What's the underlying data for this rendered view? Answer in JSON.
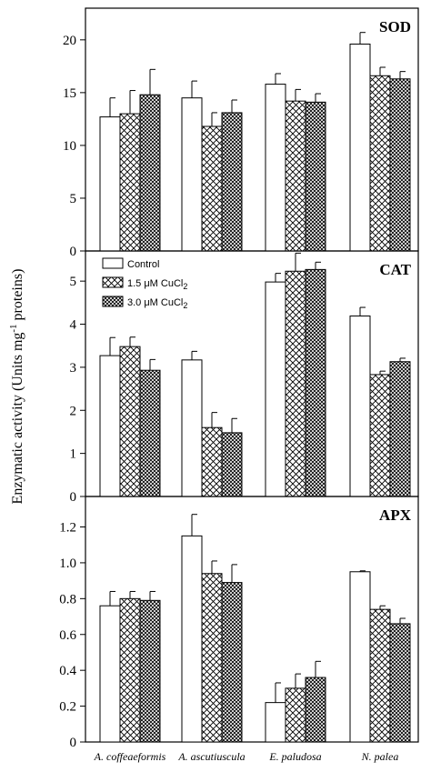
{
  "chart_data": {
    "type": "bar",
    "ylabel_main": "Enzymatic activity (Units mg",
    "ylabel_sup": "-1",
    "ylabel_end": " proteins)",
    "categories": [
      "A. coffeaeformis",
      "A. ascutiuscula",
      "E. paludosa",
      "N. palea"
    ],
    "legend": [
      {
        "name": "Control",
        "pattern": "plain"
      },
      {
        "name": "1.5 μM CuCl",
        "sub": "2",
        "pattern": "cross"
      },
      {
        "name": "3.0 μM CuCl",
        "sub": "2",
        "pattern": "dense"
      }
    ],
    "legend_panel": 1,
    "legend_position": "top-left",
    "panels": [
      {
        "title": "SOD",
        "ylim": [
          0,
          23
        ],
        "yticks": [
          0,
          5,
          10,
          15,
          20
        ],
        "tick_labels": [
          "0",
          "5",
          "10",
          "15",
          "20"
        ],
        "series": [
          {
            "values": [
              12.7,
              14.5,
              15.8,
              19.6
            ],
            "errors": [
              1.8,
              1.6,
              1.0,
              1.1
            ]
          },
          {
            "values": [
              13.0,
              11.8,
              14.2,
              16.6
            ],
            "errors": [
              2.2,
              1.3,
              1.1,
              0.8
            ]
          },
          {
            "values": [
              14.8,
              13.1,
              14.1,
              16.3
            ],
            "errors": [
              2.4,
              1.2,
              0.8,
              0.7
            ]
          }
        ]
      },
      {
        "title": "CAT",
        "ylim": [
          0,
          5.7
        ],
        "yticks": [
          0,
          1,
          2,
          3,
          4,
          5
        ],
        "tick_labels": [
          "0",
          "1",
          "2",
          "3",
          "4",
          "5"
        ],
        "series": [
          {
            "values": [
              3.27,
              3.17,
              4.98,
              4.19
            ],
            "errors": [
              0.42,
              0.2,
              0.2,
              0.2
            ]
          },
          {
            "values": [
              3.48,
              1.6,
              5.23,
              2.83
            ],
            "errors": [
              0.22,
              0.35,
              0.42,
              0.08
            ]
          },
          {
            "values": [
              2.93,
              1.48,
              5.27,
              3.13
            ],
            "errors": [
              0.25,
              0.33,
              0.17,
              0.08
            ]
          }
        ]
      },
      {
        "title": "APX",
        "ylim": [
          0,
          1.37
        ],
        "yticks": [
          0,
          0.2,
          0.4,
          0.6,
          0.8,
          1.0,
          1.2
        ],
        "tick_labels": [
          "0",
          "0.2",
          "0.4",
          "0.6",
          "0.8",
          "1.0",
          "1.2"
        ],
        "series": [
          {
            "values": [
              0.76,
              1.15,
              0.22,
              0.95
            ],
            "errors": [
              0.08,
              0.12,
              0.11,
              0.005
            ]
          },
          {
            "values": [
              0.8,
              0.94,
              0.3,
              0.74
            ],
            "errors": [
              0.04,
              0.07,
              0.08,
              0.02
            ]
          },
          {
            "values": [
              0.79,
              0.89,
              0.36,
              0.66
            ],
            "errors": [
              0.05,
              0.1,
              0.09,
              0.03
            ]
          }
        ]
      }
    ]
  }
}
